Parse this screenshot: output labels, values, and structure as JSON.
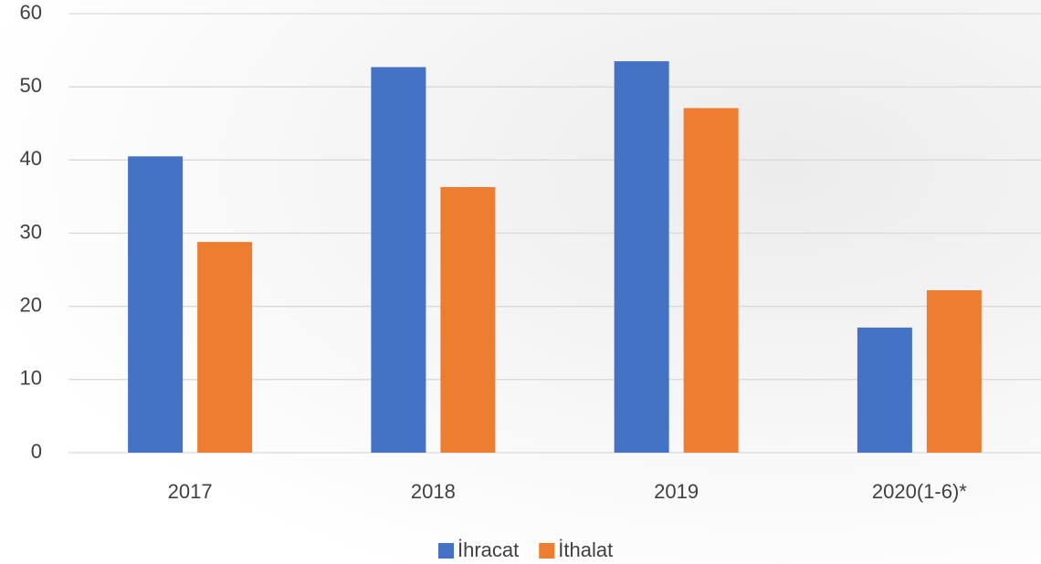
{
  "chart_data": {
    "type": "bar",
    "categories": [
      "2017",
      "2018",
      "2019",
      "2020(1-6)*"
    ],
    "series": [
      {
        "name": "İhracat",
        "color": "#4472c4",
        "values": [
          40.5,
          52.7,
          53.5,
          17.1
        ]
      },
      {
        "name": "İthalat",
        "color": "#ed7d31",
        "values": [
          28.8,
          36.3,
          47.1,
          22.2
        ]
      }
    ],
    "ylim": [
      0,
      60
    ],
    "yticks": [
      0,
      10,
      20,
      30,
      40,
      50,
      60
    ],
    "grid": true,
    "legend": "bottom"
  }
}
